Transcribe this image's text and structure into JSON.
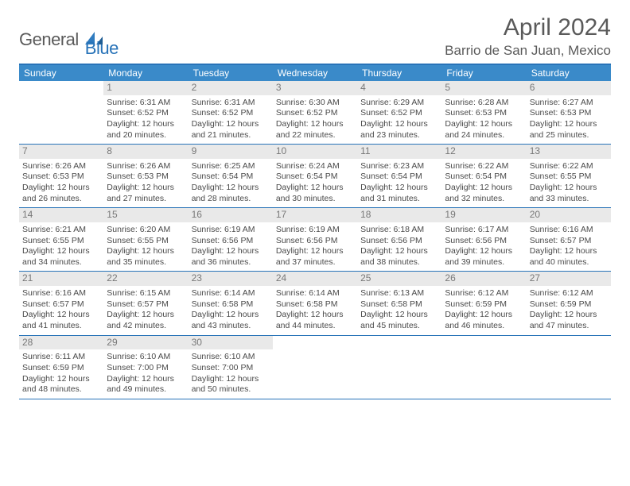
{
  "brand": {
    "text1": "General",
    "text2": "Blue"
  },
  "title": "April 2024",
  "location": "Barrio de San Juan, Mexico",
  "colors": {
    "header_bar": "#3a8ac9",
    "rule": "#2873b8",
    "daynum_bg": "#e9e9e9",
    "text": "#4a4a4a",
    "muted": "#787878"
  },
  "dow": [
    "Sunday",
    "Monday",
    "Tuesday",
    "Wednesday",
    "Thursday",
    "Friday",
    "Saturday"
  ],
  "weeks": [
    [
      null,
      {
        "n": "1",
        "sr": "6:31 AM",
        "ss": "6:52 PM",
        "dl": "12 hours and 20 minutes."
      },
      {
        "n": "2",
        "sr": "6:31 AM",
        "ss": "6:52 PM",
        "dl": "12 hours and 21 minutes."
      },
      {
        "n": "3",
        "sr": "6:30 AM",
        "ss": "6:52 PM",
        "dl": "12 hours and 22 minutes."
      },
      {
        "n": "4",
        "sr": "6:29 AM",
        "ss": "6:52 PM",
        "dl": "12 hours and 23 minutes."
      },
      {
        "n": "5",
        "sr": "6:28 AM",
        "ss": "6:53 PM",
        "dl": "12 hours and 24 minutes."
      },
      {
        "n": "6",
        "sr": "6:27 AM",
        "ss": "6:53 PM",
        "dl": "12 hours and 25 minutes."
      }
    ],
    [
      {
        "n": "7",
        "sr": "6:26 AM",
        "ss": "6:53 PM",
        "dl": "12 hours and 26 minutes."
      },
      {
        "n": "8",
        "sr": "6:26 AM",
        "ss": "6:53 PM",
        "dl": "12 hours and 27 minutes."
      },
      {
        "n": "9",
        "sr": "6:25 AM",
        "ss": "6:54 PM",
        "dl": "12 hours and 28 minutes."
      },
      {
        "n": "10",
        "sr": "6:24 AM",
        "ss": "6:54 PM",
        "dl": "12 hours and 30 minutes."
      },
      {
        "n": "11",
        "sr": "6:23 AM",
        "ss": "6:54 PM",
        "dl": "12 hours and 31 minutes."
      },
      {
        "n": "12",
        "sr": "6:22 AM",
        "ss": "6:54 PM",
        "dl": "12 hours and 32 minutes."
      },
      {
        "n": "13",
        "sr": "6:22 AM",
        "ss": "6:55 PM",
        "dl": "12 hours and 33 minutes."
      }
    ],
    [
      {
        "n": "14",
        "sr": "6:21 AM",
        "ss": "6:55 PM",
        "dl": "12 hours and 34 minutes."
      },
      {
        "n": "15",
        "sr": "6:20 AM",
        "ss": "6:55 PM",
        "dl": "12 hours and 35 minutes."
      },
      {
        "n": "16",
        "sr": "6:19 AM",
        "ss": "6:56 PM",
        "dl": "12 hours and 36 minutes."
      },
      {
        "n": "17",
        "sr": "6:19 AM",
        "ss": "6:56 PM",
        "dl": "12 hours and 37 minutes."
      },
      {
        "n": "18",
        "sr": "6:18 AM",
        "ss": "6:56 PM",
        "dl": "12 hours and 38 minutes."
      },
      {
        "n": "19",
        "sr": "6:17 AM",
        "ss": "6:56 PM",
        "dl": "12 hours and 39 minutes."
      },
      {
        "n": "20",
        "sr": "6:16 AM",
        "ss": "6:57 PM",
        "dl": "12 hours and 40 minutes."
      }
    ],
    [
      {
        "n": "21",
        "sr": "6:16 AM",
        "ss": "6:57 PM",
        "dl": "12 hours and 41 minutes."
      },
      {
        "n": "22",
        "sr": "6:15 AM",
        "ss": "6:57 PM",
        "dl": "12 hours and 42 minutes."
      },
      {
        "n": "23",
        "sr": "6:14 AM",
        "ss": "6:58 PM",
        "dl": "12 hours and 43 minutes."
      },
      {
        "n": "24",
        "sr": "6:14 AM",
        "ss": "6:58 PM",
        "dl": "12 hours and 44 minutes."
      },
      {
        "n": "25",
        "sr": "6:13 AM",
        "ss": "6:58 PM",
        "dl": "12 hours and 45 minutes."
      },
      {
        "n": "26",
        "sr": "6:12 AM",
        "ss": "6:59 PM",
        "dl": "12 hours and 46 minutes."
      },
      {
        "n": "27",
        "sr": "6:12 AM",
        "ss": "6:59 PM",
        "dl": "12 hours and 47 minutes."
      }
    ],
    [
      {
        "n": "28",
        "sr": "6:11 AM",
        "ss": "6:59 PM",
        "dl": "12 hours and 48 minutes."
      },
      {
        "n": "29",
        "sr": "6:10 AM",
        "ss": "7:00 PM",
        "dl": "12 hours and 49 minutes."
      },
      {
        "n": "30",
        "sr": "6:10 AM",
        "ss": "7:00 PM",
        "dl": "12 hours and 50 minutes."
      },
      null,
      null,
      null,
      null
    ]
  ],
  "labels": {
    "sunrise": "Sunrise:",
    "sunset": "Sunset:",
    "daylight": "Daylight:"
  }
}
